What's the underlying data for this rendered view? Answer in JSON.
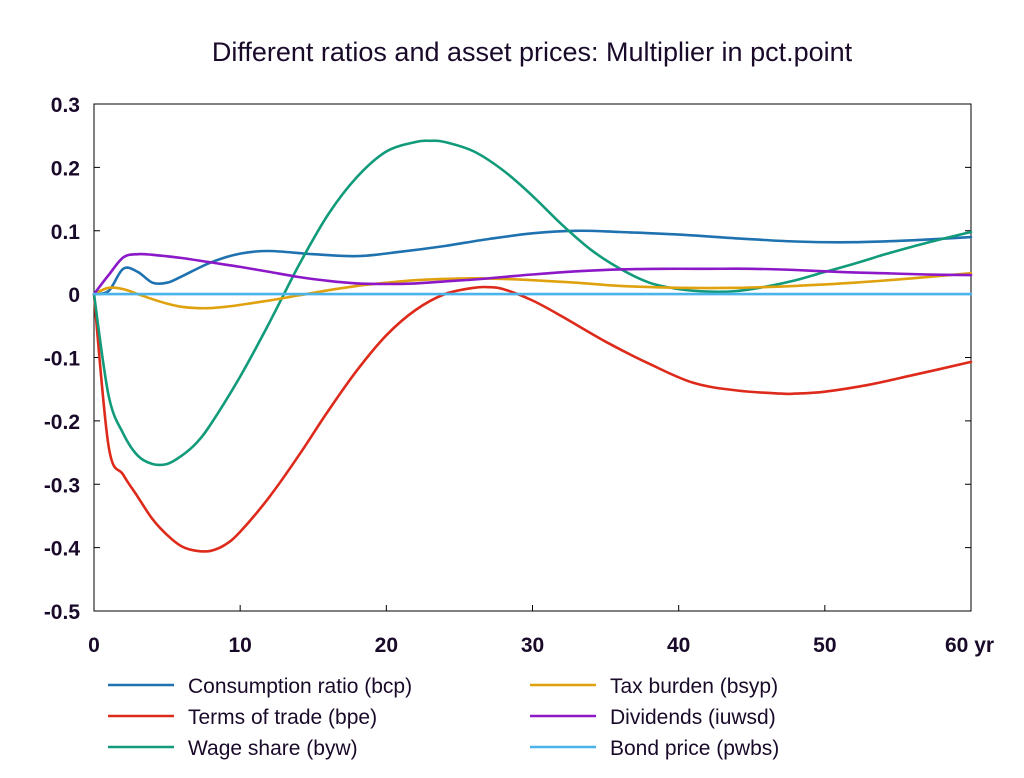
{
  "chart_data": {
    "type": "line",
    "title": "Different ratios and asset prices: Multiplier in pct.point",
    "xlabel": "",
    "ylabel": "",
    "x_unit": "yr",
    "xlim": [
      0,
      60
    ],
    "ylim": [
      -0.5,
      0.3
    ],
    "xticks": [
      0,
      10,
      20,
      30,
      40,
      50,
      60
    ],
    "xtick_labels": [
      "0",
      "10",
      "20",
      "30",
      "40",
      "50",
      "60 yr"
    ],
    "yticks": [
      0.3,
      0.2,
      0.1,
      0,
      -0.1,
      -0.2,
      -0.3,
      -0.4,
      -0.5
    ],
    "ytick_labels": [
      "0.3",
      "0.2",
      "0.1",
      "0",
      "-0.1",
      "-0.2",
      "-0.3",
      "-0.4",
      "-0.5"
    ],
    "grid": false,
    "zero_line": true,
    "legend_position": "bottom",
    "series": [
      {
        "name": "Consumption ratio (bcp)",
        "color": "#1f72b0",
        "x": [
          0,
          1,
          2,
          3,
          4,
          5,
          6,
          8,
          10,
          12,
          15,
          18,
          21,
          24,
          27,
          30,
          33,
          36,
          40,
          44,
          48,
          52,
          56,
          60
        ],
        "y": [
          0,
          0.005,
          0.04,
          0.035,
          0.018,
          0.018,
          0.028,
          0.05,
          0.064,
          0.068,
          0.063,
          0.06,
          0.067,
          0.076,
          0.087,
          0.096,
          0.1,
          0.098,
          0.094,
          0.088,
          0.083,
          0.082,
          0.085,
          0.09
        ]
      },
      {
        "name": "Terms of trade (bpe)",
        "color": "#dd2a1b",
        "x": [
          0,
          1,
          2,
          3,
          4,
          5,
          6,
          7,
          8,
          9,
          10,
          12,
          14,
          16,
          18,
          20,
          22,
          24,
          26,
          27,
          28,
          30,
          32,
          35,
          38,
          41,
          44,
          47,
          48,
          50,
          53,
          56,
          60
        ],
        "y": [
          0,
          -0.24,
          -0.285,
          -0.32,
          -0.355,
          -0.38,
          -0.398,
          -0.405,
          -0.405,
          -0.395,
          -0.375,
          -0.32,
          -0.255,
          -0.185,
          -0.12,
          -0.065,
          -0.025,
          0.0,
          0.01,
          0.011,
          0.008,
          -0.01,
          -0.035,
          -0.075,
          -0.11,
          -0.14,
          -0.152,
          -0.157,
          -0.157,
          -0.154,
          -0.143,
          -0.128,
          -0.107
        ]
      },
      {
        "name": "Wage share (byw)",
        "color": "#119b7a",
        "x": [
          0,
          1,
          2,
          3,
          4,
          5,
          6,
          7,
          8,
          10,
          12,
          14,
          16,
          18,
          20,
          22,
          23,
          24,
          26,
          28,
          30,
          32,
          34,
          36,
          38,
          40,
          42,
          44,
          46,
          48,
          50,
          52,
          54,
          56,
          58,
          60
        ],
        "y": [
          0,
          -0.16,
          -0.22,
          -0.255,
          -0.268,
          -0.268,
          -0.255,
          -0.235,
          -0.205,
          -0.13,
          -0.045,
          0.045,
          0.125,
          0.185,
          0.225,
          0.24,
          0.242,
          0.24,
          0.225,
          0.195,
          0.155,
          0.11,
          0.07,
          0.04,
          0.018,
          0.008,
          0.004,
          0.005,
          0.012,
          0.022,
          0.035,
          0.048,
          0.062,
          0.075,
          0.087,
          0.098
        ]
      },
      {
        "name": "Tax burden (bsyp)",
        "color": "#e0a10e",
        "x": [
          0,
          1,
          2,
          3,
          4,
          5,
          6,
          7,
          8,
          9,
          10,
          12,
          14,
          16,
          18,
          20,
          22,
          24,
          26,
          28,
          30,
          33,
          36,
          40,
          44,
          48,
          52,
          56,
          60
        ],
        "y": [
          0,
          0.01,
          0.008,
          0.0,
          -0.008,
          -0.015,
          -0.02,
          -0.022,
          -0.022,
          -0.02,
          -0.017,
          -0.01,
          -0.002,
          0.006,
          0.013,
          0.018,
          0.022,
          0.024,
          0.025,
          0.024,
          0.022,
          0.018,
          0.013,
          0.01,
          0.01,
          0.013,
          0.018,
          0.025,
          0.033
        ]
      },
      {
        "name": "Dividends (iuwsd)",
        "color": "#8c18c7",
        "x": [
          0,
          1,
          2,
          3,
          4,
          6,
          8,
          10,
          12,
          14,
          16,
          18,
          20,
          22,
          24,
          26,
          28,
          30,
          33,
          36,
          39,
          42,
          45,
          48,
          51,
          54,
          57,
          60
        ],
        "y": [
          0,
          0.03,
          0.058,
          0.063,
          0.062,
          0.057,
          0.05,
          0.043,
          0.035,
          0.027,
          0.021,
          0.017,
          0.016,
          0.017,
          0.02,
          0.023,
          0.027,
          0.031,
          0.036,
          0.039,
          0.04,
          0.04,
          0.04,
          0.038,
          0.035,
          0.033,
          0.031,
          0.03
        ]
      },
      {
        "name": "Bond price (pwbs)",
        "color": "#4ab3ea",
        "x": [
          0,
          60
        ],
        "y": [
          0,
          0
        ]
      }
    ]
  }
}
